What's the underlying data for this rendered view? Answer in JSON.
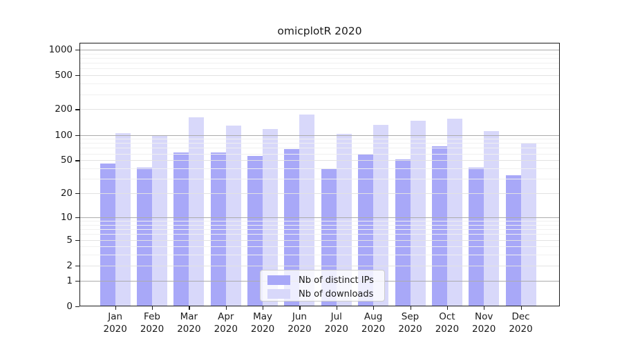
{
  "title": "omicplotR 2020",
  "legend": {
    "position": "lower center",
    "items": [
      {
        "label": "Nb of distinct IPs",
        "color": "#a8a8f8"
      },
      {
        "label": "Nb of downloads",
        "color": "#d8d8fa"
      }
    ]
  },
  "chart_data": {
    "type": "bar",
    "title": "omicplotR 2020",
    "categories": [
      "Jan 2020",
      "Feb 2020",
      "Mar 2020",
      "Apr 2020",
      "May 2020",
      "Jun 2020",
      "Jul 2020",
      "Aug 2020",
      "Sep 2020",
      "Oct 2020",
      "Nov 2020",
      "Dec 2020"
    ],
    "x_tick_months": [
      "Jan",
      "Feb",
      "Mar",
      "Apr",
      "May",
      "Jun",
      "Jul",
      "Aug",
      "Sep",
      "Oct",
      "Nov",
      "Dec"
    ],
    "x_tick_year": "2020",
    "series": [
      {
        "name": "Nb of distinct IPs",
        "color": "#a8a8f8",
        "values": [
          46,
          41,
          62,
          62,
          56,
          68,
          40,
          59,
          51,
          73,
          41,
          33
        ]
      },
      {
        "name": "Nb of downloads",
        "color": "#d8d8fa",
        "values": [
          105,
          100,
          160,
          130,
          117,
          175,
          102,
          132,
          146,
          155,
          110,
          80
        ]
      }
    ],
    "xlabel": "",
    "ylabel": "",
    "yscale": "log1p",
    "yticks": [
      0,
      1,
      2,
      5,
      10,
      20,
      50,
      100,
      200,
      500,
      1000
    ],
    "ylim": [
      0,
      1200
    ],
    "grid": "on",
    "legend_position": "lower center",
    "colors": {
      "grid_major": "#ababab",
      "grid_secondary": "#e2e2e2",
      "grid_minor": "#f0f0f0",
      "axis": "#1a1a1a"
    }
  }
}
